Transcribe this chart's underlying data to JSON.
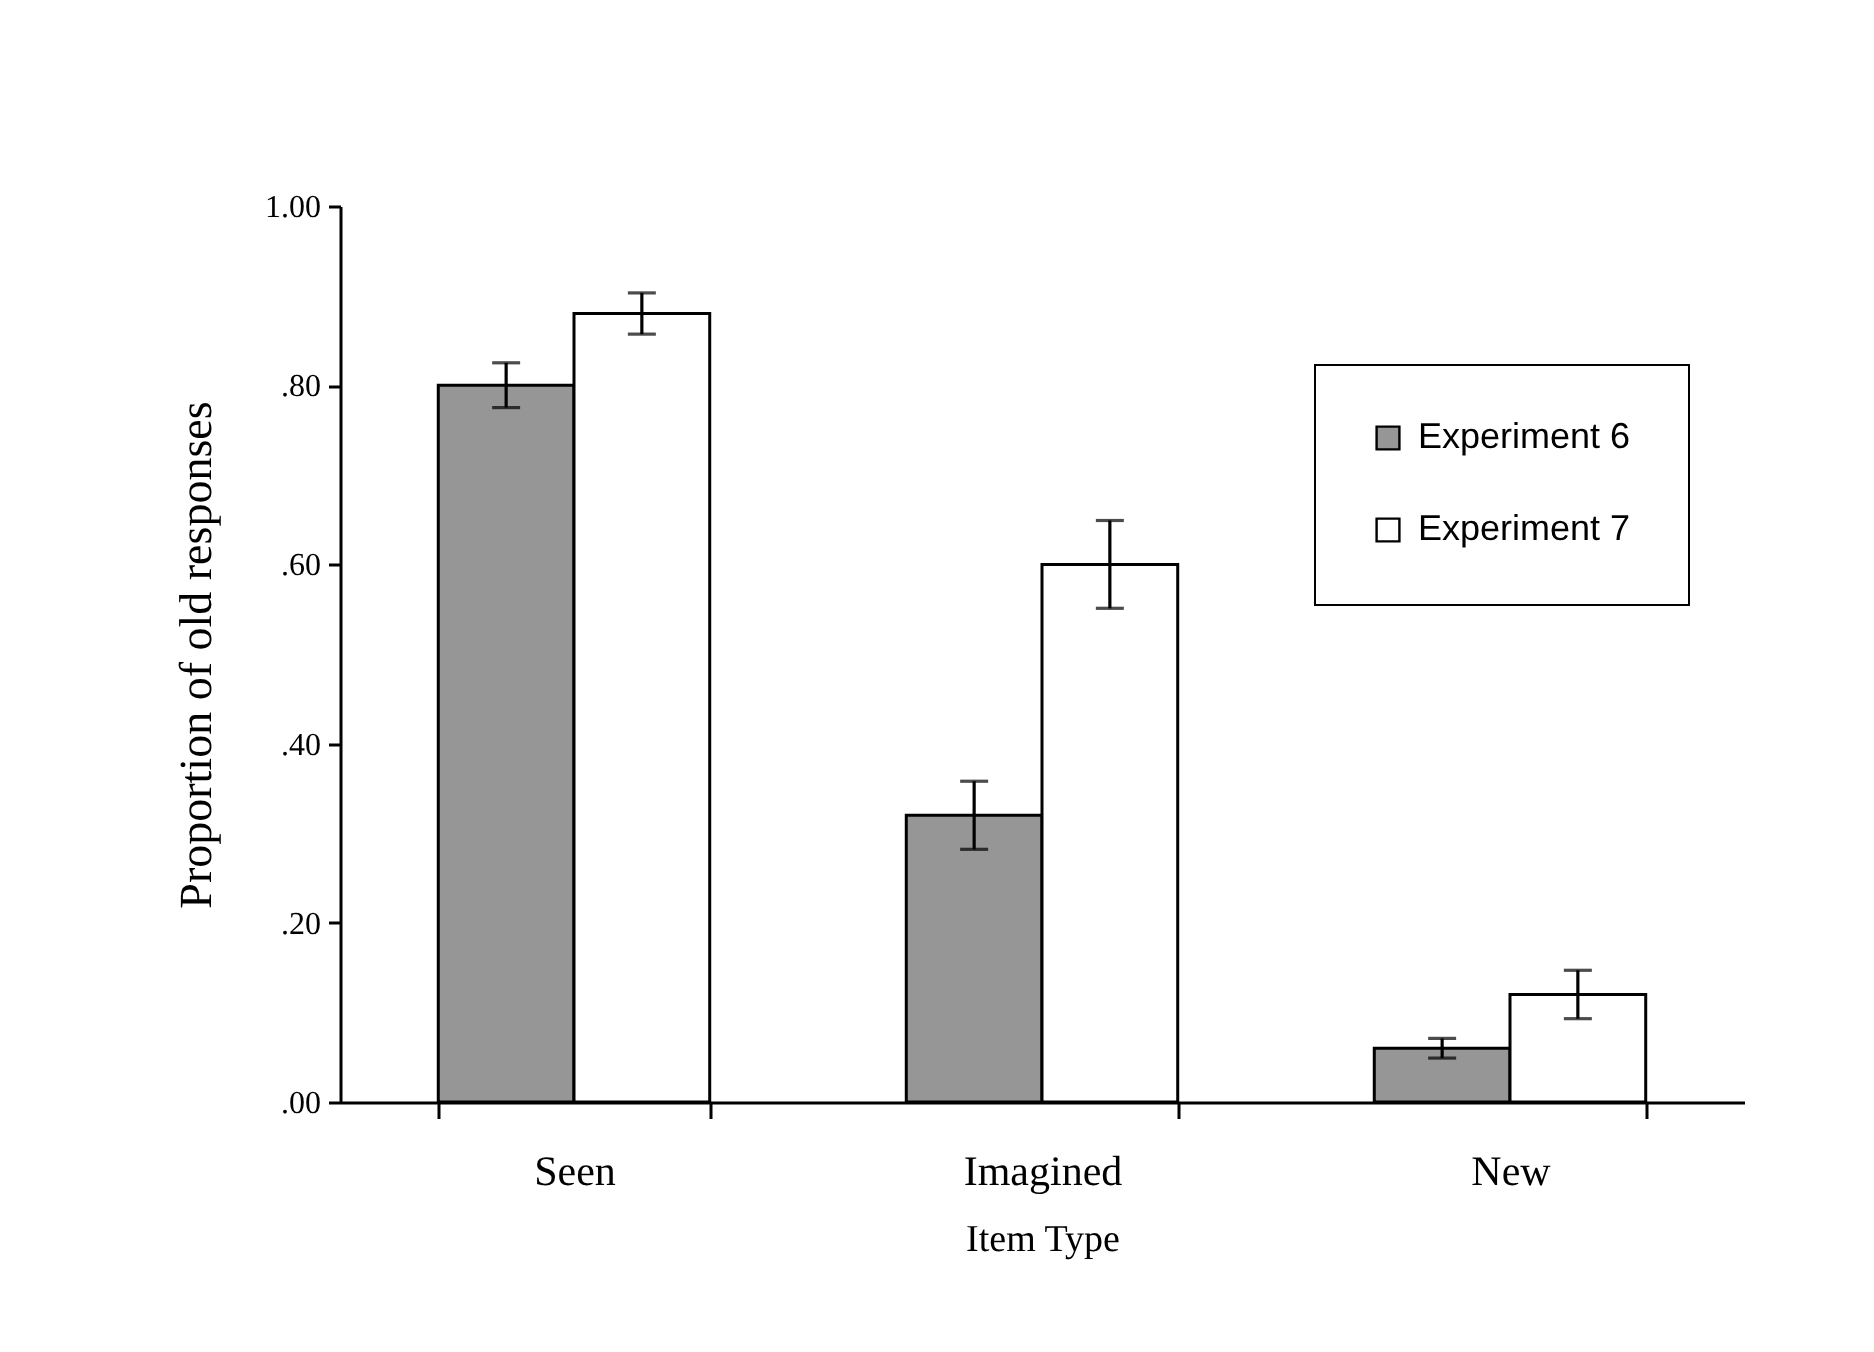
{
  "chart_data": {
    "type": "bar",
    "xlabel": "Item Type",
    "ylabel": "Proportion of old responses",
    "categories": [
      "Seen",
      "Imagined",
      "New"
    ],
    "series": [
      {
        "name": "Experiment 6",
        "color": "#969696",
        "values": [
          0.8,
          0.32,
          0.06
        ],
        "errors": [
          0.025,
          0.038,
          0.011
        ]
      },
      {
        "name": "Experiment 7",
        "color": "#ffffff",
        "values": [
          0.88,
          0.6,
          0.12
        ],
        "errors": [
          0.023,
          0.049,
          0.027
        ]
      }
    ],
    "ylim": [
      0,
      1
    ],
    "yticks": [
      {
        "value": 0,
        "label": ".00"
      },
      {
        "value": 0.2,
        "label": ".20"
      },
      {
        "value": 0.4,
        "label": ".40"
      },
      {
        "value": 0.6,
        "label": ".60"
      },
      {
        "value": 0.8,
        "label": ".80"
      },
      {
        "value": 1,
        "label": "1.00"
      }
    ],
    "legend": "top right"
  }
}
